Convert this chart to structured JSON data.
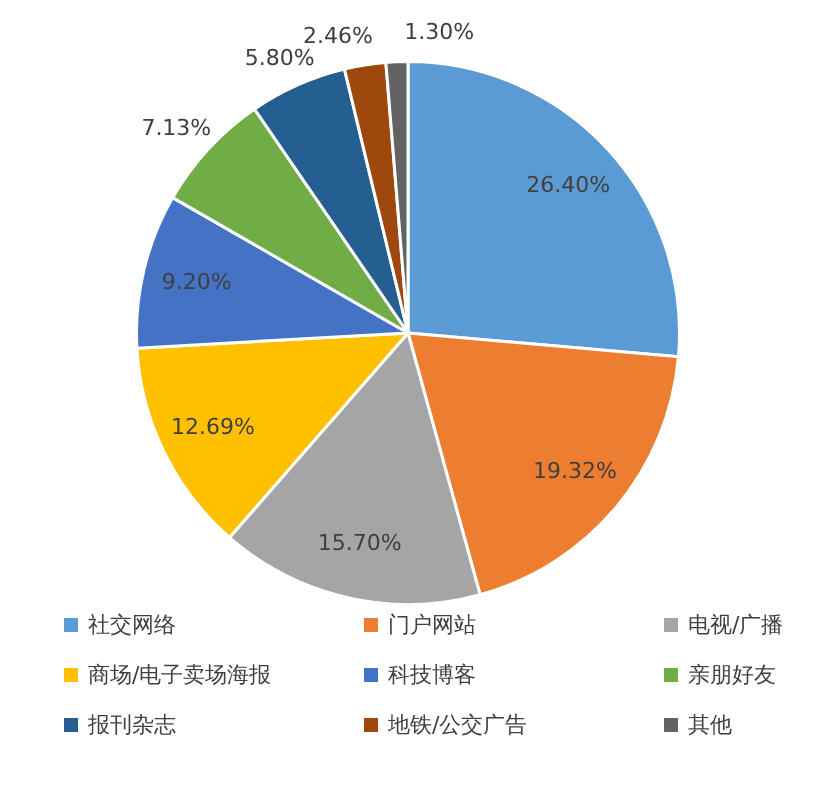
{
  "chart_data": {
    "type": "pie",
    "categories": [
      "社交网络",
      "门户网站",
      "电视/广播",
      "商场/电子卖场海报",
      "科技博客",
      "亲朋好友",
      "报刊杂志",
      "地铁/公交广告",
      "其他"
    ],
    "values": [
      26.4,
      19.32,
      15.7,
      12.69,
      9.2,
      7.13,
      5.8,
      2.46,
      1.3
    ],
    "value_labels": [
      "26.40%",
      "19.32%",
      "15.70%",
      "12.69%",
      "9.20%",
      "7.13%",
      "5.80%",
      "2.46%",
      "1.30%"
    ],
    "colors": [
      "#5b9bd5",
      "#ed7d31",
      "#a5a5a5",
      "#ffc000",
      "#4472c4",
      "#70ad47",
      "#255e91",
      "#9e480e",
      "#636363"
    ],
    "legend": "bottom"
  }
}
